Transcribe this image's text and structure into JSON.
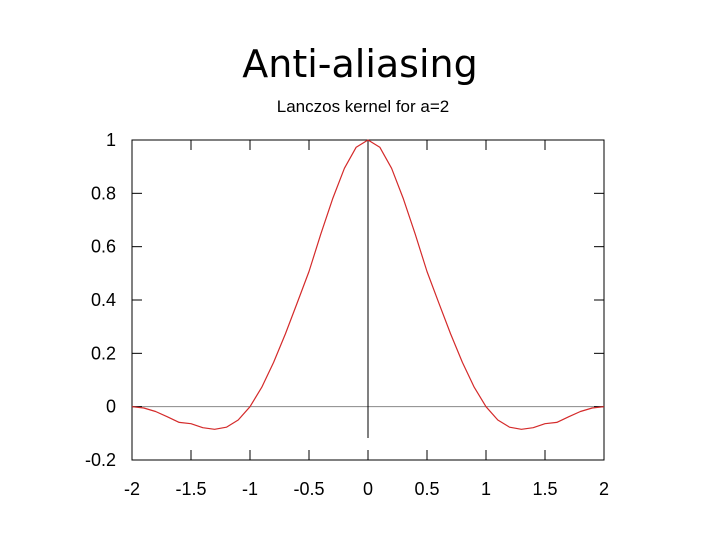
{
  "slide": {
    "title": "Anti-aliasing"
  },
  "chart_data": {
    "type": "line",
    "title": "Lanczos kernel for a=2",
    "xlabel": "",
    "ylabel": "",
    "xlim": [
      -2,
      2
    ],
    "ylim": [
      -0.2,
      1
    ],
    "x_ticks": [
      "-2",
      "-1.5",
      "-1",
      "-0.5",
      "0",
      "0.5",
      "1",
      "1.5",
      "2"
    ],
    "y_ticks": [
      "1",
      "0.8",
      "0.6",
      "0.4",
      "0.2",
      "0",
      "-0.2"
    ],
    "grid": false,
    "legend": "none",
    "series": [
      {
        "color": "#d42a2a",
        "x": [
          -2,
          -1.9,
          -1.8,
          -1.7,
          -1.6,
          -1.5,
          -1.4,
          -1.3,
          -1.2,
          -1.1,
          -1.0,
          -0.9,
          -0.8,
          -0.7,
          -0.6,
          -0.5,
          -0.4,
          -0.3,
          -0.2,
          -0.1,
          0,
          0.1,
          0.2,
          0.3,
          0.4,
          0.5,
          0.6,
          0.7,
          0.8,
          0.9,
          1.0,
          1.1,
          1.2,
          1.3,
          1.4,
          1.5,
          1.6,
          1.7,
          1.8,
          1.9,
          2
        ],
        "values": [
          0,
          -0.005,
          -0.018,
          -0.038,
          -0.059,
          -0.064,
          -0.079,
          -0.085,
          -0.077,
          -0.05,
          0,
          0.073,
          0.166,
          0.273,
          0.389,
          0.507,
          0.647,
          0.779,
          0.894,
          0.973,
          1,
          0.973,
          0.894,
          0.779,
          0.647,
          0.507,
          0.389,
          0.273,
          0.166,
          0.073,
          0,
          -0.05,
          -0.077,
          -0.085,
          -0.079,
          -0.064,
          -0.059,
          -0.038,
          -0.018,
          -0.005,
          0
        ]
      }
    ],
    "reference_lines": {
      "zero_line_color": "#888888",
      "x0_line_color": "#000000"
    }
  }
}
